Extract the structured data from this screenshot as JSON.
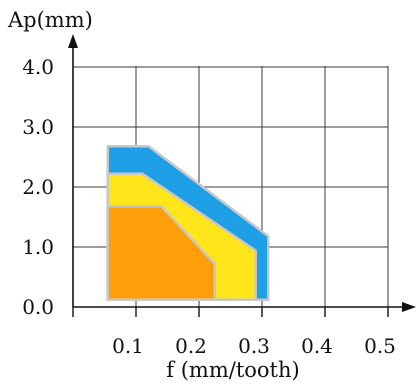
{
  "chart_data": {
    "type": "area",
    "title": "",
    "xlabel": "f (mm/tooth)",
    "ylabel": "Ap(mm)",
    "xlim": [
      0,
      0.5
    ],
    "ylim": [
      0,
      4.0
    ],
    "x_ticks": [
      "0.1",
      "0.2",
      "0.3",
      "0.4",
      "0.5"
    ],
    "y_ticks": [
      "0.0",
      "1.0",
      "2.0",
      "3.0",
      "4.0"
    ],
    "grid": true,
    "series": [
      {
        "color": "#1E9FE6",
        "points": [
          [
            0.055,
            2.68
          ],
          [
            0.12,
            2.68
          ],
          [
            0.31,
            1.18
          ],
          [
            0.31,
            0.12
          ],
          [
            0.055,
            0.12
          ]
        ]
      },
      {
        "color": "#FFE51A",
        "points": [
          [
            0.055,
            2.22
          ],
          [
            0.11,
            2.22
          ],
          [
            0.29,
            0.94
          ],
          [
            0.29,
            0.12
          ],
          [
            0.055,
            0.12
          ]
        ]
      },
      {
        "color": "#FF9E0B",
        "points": [
          [
            0.055,
            1.68
          ],
          [
            0.14,
            1.68
          ],
          [
            0.225,
            0.72
          ],
          [
            0.225,
            0.12
          ],
          [
            0.055,
            0.12
          ]
        ]
      }
    ]
  }
}
